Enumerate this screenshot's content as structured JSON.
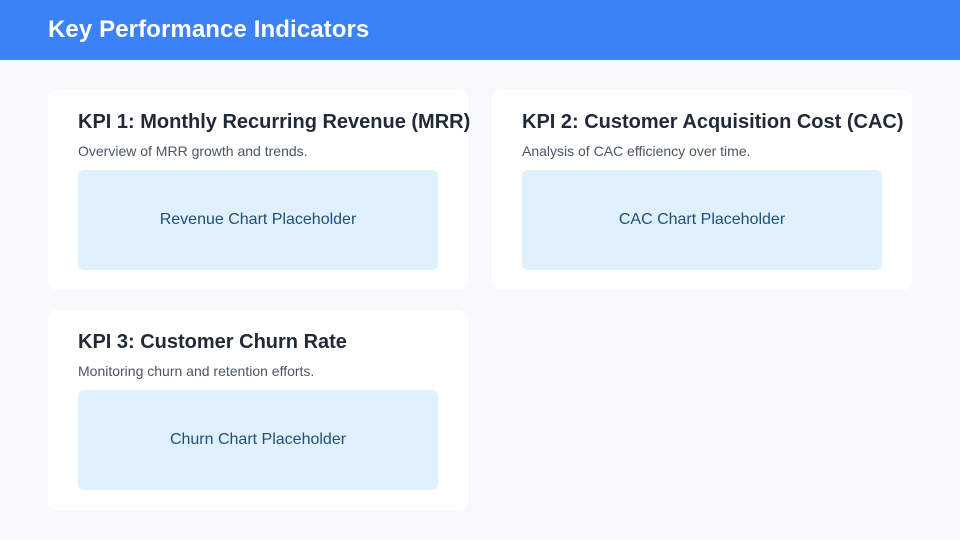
{
  "header": {
    "title": "Key Performance Indicators"
  },
  "colors": {
    "header_bg": "#3b82f6",
    "page_bg": "#f7f9fc",
    "card_bg": "#ffffff",
    "placeholder_bg": "#e0f1fd"
  },
  "cards": [
    {
      "title": "KPI 1: Monthly Recurring Revenue (MRR)",
      "description": "Overview of MRR growth and trends.",
      "placeholder": "Revenue Chart Placeholder"
    },
    {
      "title": "KPI 2: Customer Acquisition Cost (CAC)",
      "description": "Analysis of CAC efficiency over time.",
      "placeholder": "CAC Chart Placeholder"
    },
    {
      "title": "KPI 3: Customer Churn Rate",
      "description": "Monitoring churn and retention efforts.",
      "placeholder": "Churn Chart Placeholder"
    }
  ]
}
